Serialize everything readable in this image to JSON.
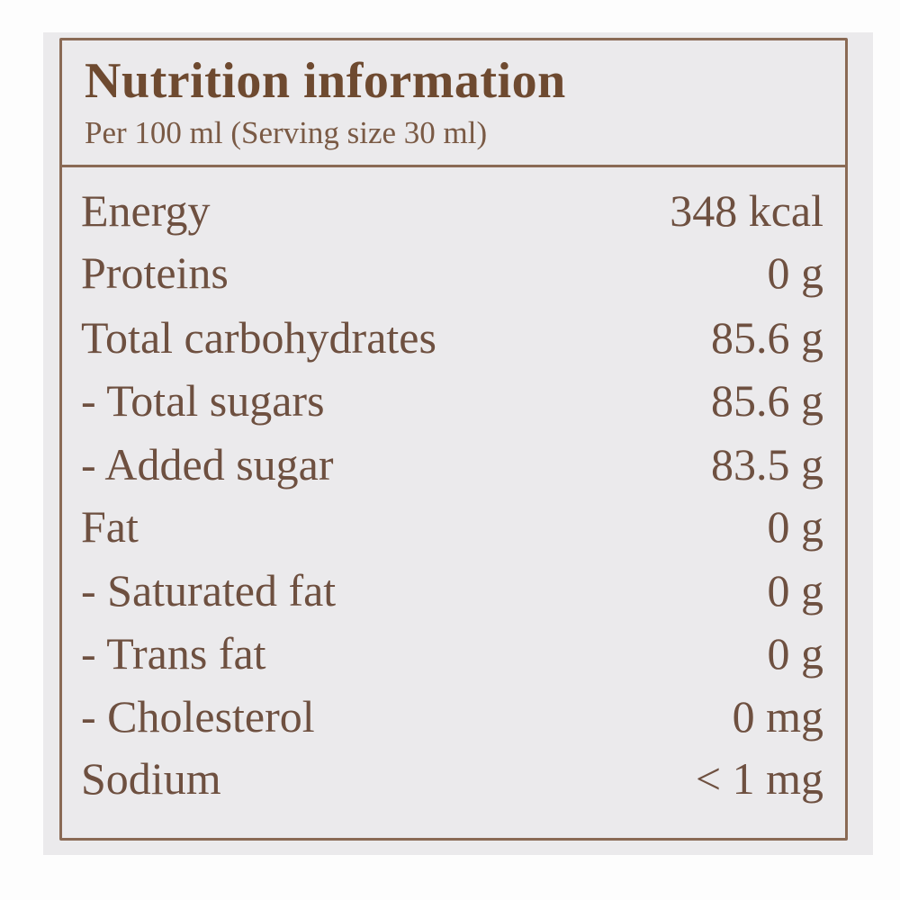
{
  "title": "Nutrition information",
  "subtitle": "Per 100 ml (Serving size 30 ml)",
  "rows": [
    {
      "name": "Energy",
      "value": "348 kcal"
    },
    {
      "name": "Proteins",
      "value": "0 g"
    },
    {
      "name": "Total carbohydrates",
      "value": "85.6 g"
    },
    {
      "name": "- Total sugars",
      "value": "85.6 g"
    },
    {
      "name": "- Added sugar",
      "value": "83.5 g"
    },
    {
      "name": "Fat",
      "value": "0 g"
    },
    {
      "name": "- Saturated fat",
      "value": "0 g"
    },
    {
      "name": "- Trans fat",
      "value": "0 g"
    },
    {
      "name": "- Cholesterol",
      "value": "0 mg"
    },
    {
      "name": "Sodium",
      "value": "< 1 mg"
    }
  ],
  "colors": {
    "ink": "#6e4a30",
    "border": "#8a6a55",
    "label_bg": "#ebeaec"
  }
}
